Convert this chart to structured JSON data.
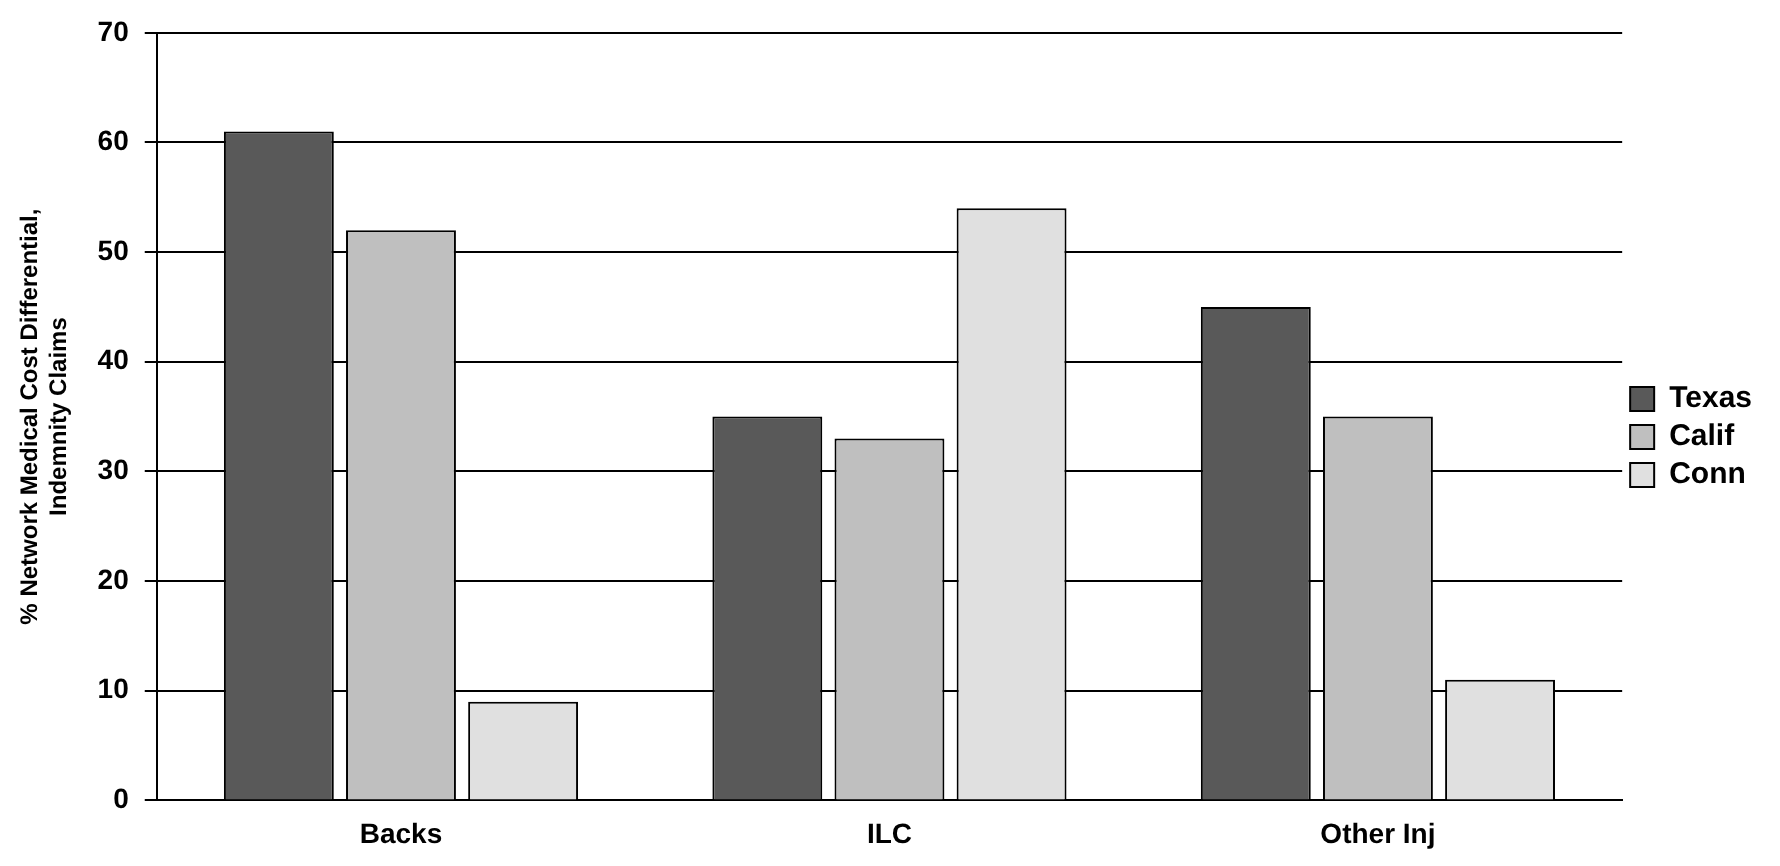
{
  "chart_data": {
    "type": "bar",
    "ylabel": "% Network Medical Cost Differential,\nIndemnity Claims",
    "categories": [
      "Backs",
      "ILC",
      "Other Inj"
    ],
    "series": [
      {
        "name": "Texas",
        "color": "#595959",
        "values": [
          61,
          35,
          45
        ]
      },
      {
        "name": "Calif",
        "color": "#bfbfbf",
        "values": [
          52,
          33,
          35
        ]
      },
      {
        "name": "Conn",
        "color": "#e0e0e0",
        "values": [
          9,
          54,
          11
        ]
      }
    ],
    "ylim": [
      0,
      70
    ],
    "yticks": [
      0,
      10,
      20,
      30,
      40,
      50,
      60,
      70
    ],
    "grid": "y",
    "legend": "right"
  }
}
